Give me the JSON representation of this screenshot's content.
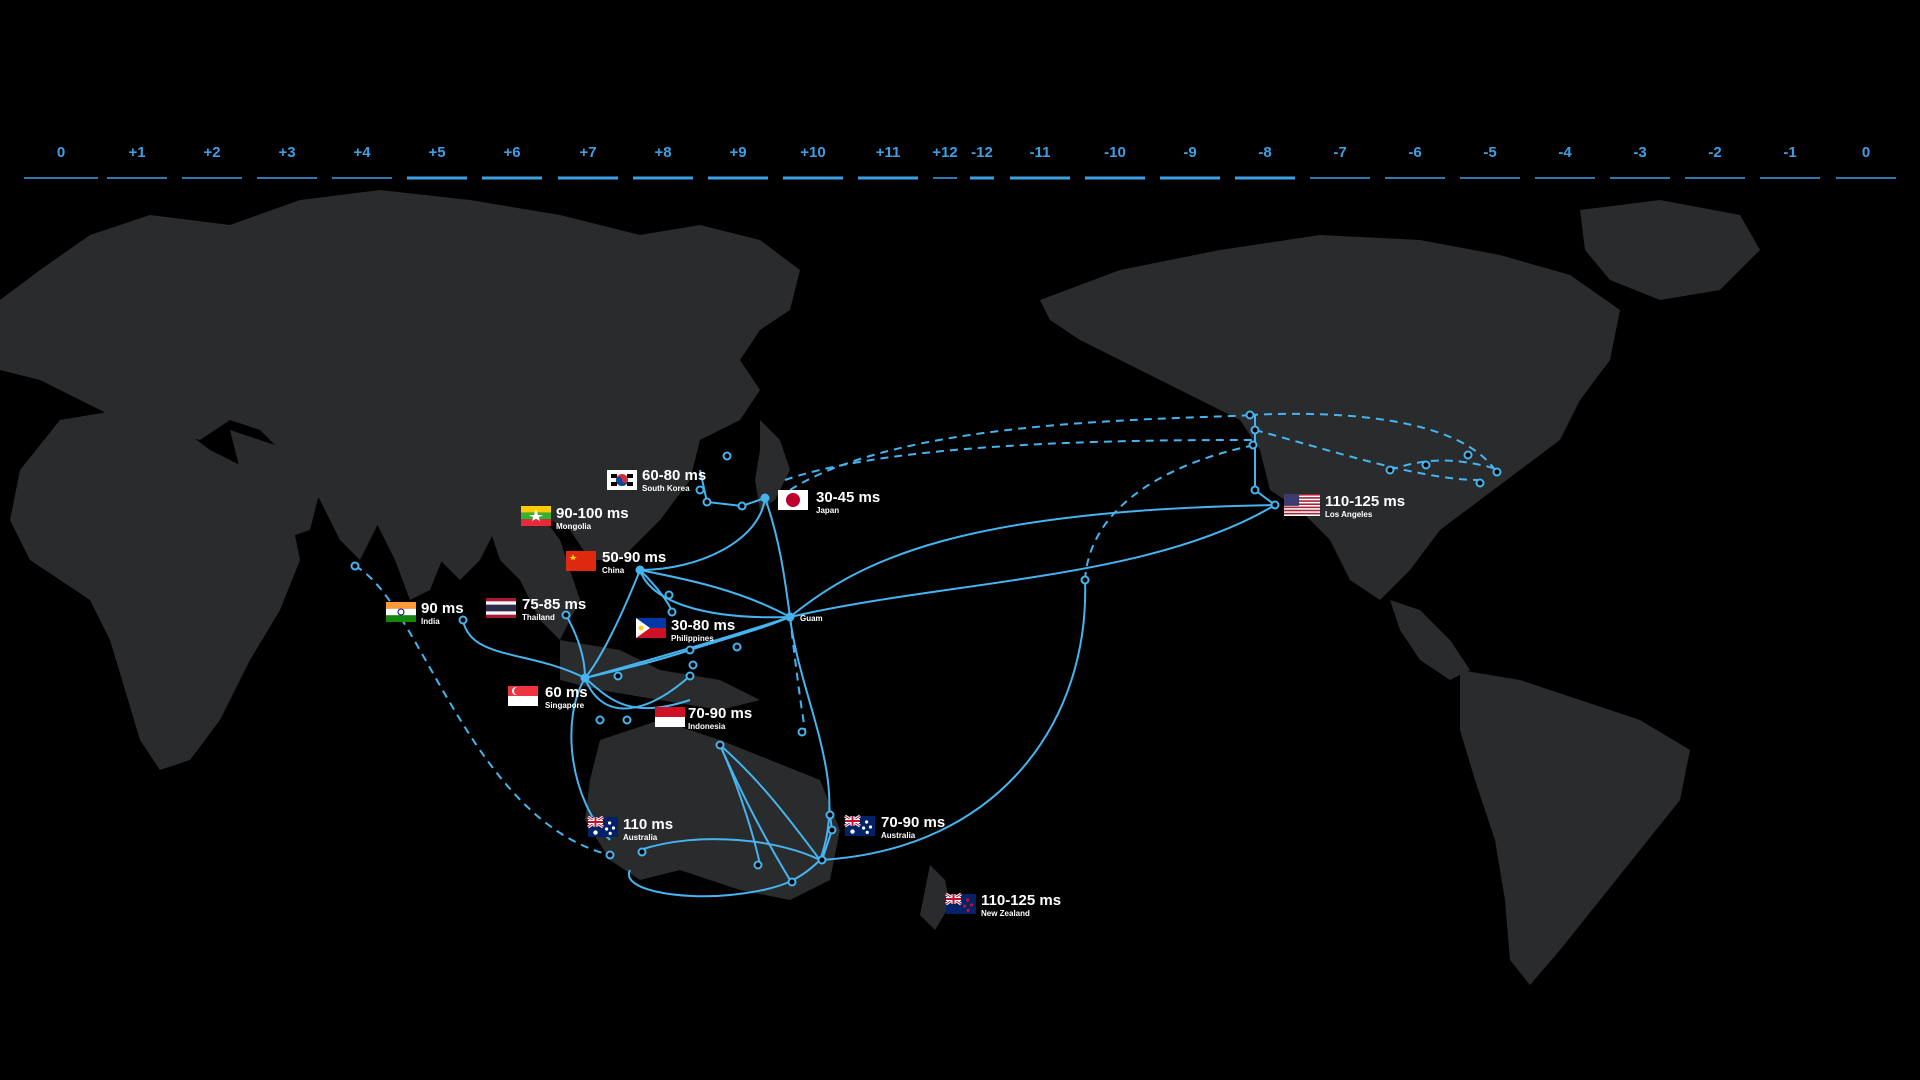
{
  "timezones": [
    "0",
    "+1",
    "+2",
    "+3",
    "+4",
    "+5",
    "+6",
    "+7",
    "+8",
    "+9",
    "+10",
    "+11",
    "+12",
    "-12",
    "-11",
    "-10",
    "-9",
    "-8",
    "-7",
    "-6",
    "-5",
    "-4",
    "-3",
    "-2",
    "-1",
    "0"
  ],
  "colors": {
    "accent": "#3ea0e4",
    "land": "#2a2b2d",
    "background": "#000000"
  },
  "locations": [
    {
      "id": "south-korea",
      "latency": "60-80 ms",
      "name": "South Korea",
      "flag": "south-korea-flag"
    },
    {
      "id": "japan",
      "latency": "30-45 ms",
      "name": "Japan",
      "flag": "japan-flag"
    },
    {
      "id": "mongolia",
      "latency": "90-100 ms",
      "name": "Mongolia",
      "flag": "myanmar-flag"
    },
    {
      "id": "china",
      "latency": "50-90 ms",
      "name": "China",
      "flag": "china-flag"
    },
    {
      "id": "india",
      "latency": "90 ms",
      "name": "India",
      "flag": "india-flag"
    },
    {
      "id": "thailand",
      "latency": "75-85 ms",
      "name": "Thailand",
      "flag": "thailand-flag"
    },
    {
      "id": "philippines",
      "latency": "30-80 ms",
      "name": "Philippines",
      "flag": "philippines-flag"
    },
    {
      "id": "singapore",
      "latency": "60 ms",
      "name": "Singapore",
      "flag": "singapore-flag"
    },
    {
      "id": "indonesia",
      "latency": "70-90 ms",
      "name": "Indonesia",
      "flag": "indonesia-flag"
    },
    {
      "id": "australia-west",
      "latency": "110 ms",
      "name": "Australia",
      "flag": "australia-flag"
    },
    {
      "id": "australia-east",
      "latency": "70-90 ms",
      "name": "Australia",
      "flag": "australia-flag"
    },
    {
      "id": "new-zealand",
      "latency": "110-125 ms",
      "name": "New Zealand",
      "flag": "new-zealand-flag"
    },
    {
      "id": "los-angeles",
      "latency": "110-125 ms",
      "name": "Los Angeles",
      "flag": "usa-flag"
    }
  ],
  "hub": {
    "name": "Guam"
  }
}
